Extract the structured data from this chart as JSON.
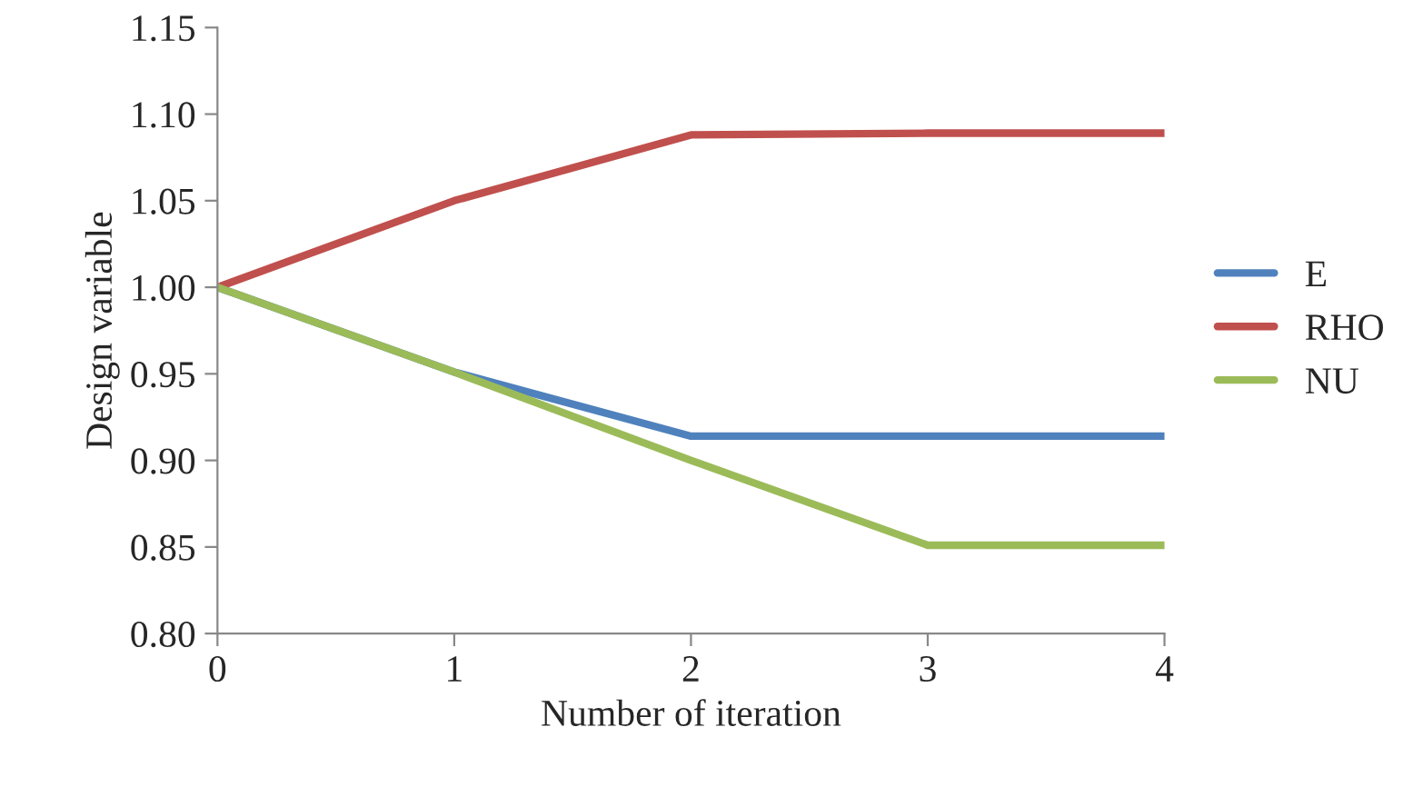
{
  "chart_data": {
    "type": "line",
    "xlabel": "Number of iteration",
    "ylabel": "Design variable",
    "x": [
      0,
      1,
      2,
      3,
      4
    ],
    "series": [
      {
        "name": "E",
        "color": "#4f81bd",
        "values": [
          1.0,
          0.951,
          0.914,
          0.914,
          0.914
        ]
      },
      {
        "name": "RHO",
        "color": "#c0504d",
        "values": [
          1.0,
          1.05,
          1.088,
          1.089,
          1.089
        ]
      },
      {
        "name": "NU",
        "color": "#9bbb59",
        "values": [
          1.0,
          0.951,
          0.9,
          0.851,
          0.851
        ]
      }
    ],
    "xlim": [
      0,
      4
    ],
    "xticks": [
      0,
      1,
      2,
      3,
      4
    ],
    "ylim": [
      0.8,
      1.15
    ],
    "yticks": [
      {
        "value": 0.8,
        "label": "0.80"
      },
      {
        "value": 0.85,
        "label": "0.85"
      },
      {
        "value": 0.9,
        "label": "0.90"
      },
      {
        "value": 0.95,
        "label": "0.95"
      },
      {
        "value": 1.0,
        "label": "1.00"
      },
      {
        "value": 1.05,
        "label": "1.05"
      },
      {
        "value": 1.1,
        "label": "1.10"
      },
      {
        "value": 1.15,
        "label": "1.15"
      }
    ],
    "grid": false,
    "legend": "right",
    "marker": "none",
    "line_style": "solid"
  }
}
